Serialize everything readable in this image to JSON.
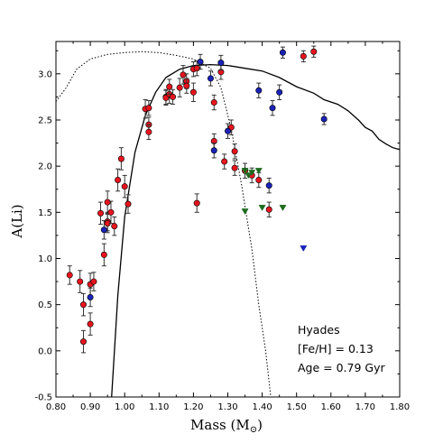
{
  "chart_data": {
    "type": "scatter",
    "xlabel": "Mass (M",
    "xlabel_sub": "⊙",
    "xlabel_end": ")",
    "ylabel": "A(Li)",
    "xlim": [
      0.8,
      1.8
    ],
    "ylim": [
      -0.5,
      3.35
    ],
    "xticks": [
      "0.80",
      "0.90",
      "1.00",
      "1.10",
      "1.20",
      "1.30",
      "1.40",
      "1.50",
      "1.60",
      "1.70",
      "1.80"
    ],
    "xtick_values": [
      0.8,
      0.9,
      1.0,
      1.1,
      1.2,
      1.3,
      1.4,
      1.5,
      1.6,
      1.7,
      1.8
    ],
    "yticks": [
      "-0.5",
      "0.0",
      "0.5",
      "1.0",
      "1.5",
      "2.0",
      "2.5",
      "3.0"
    ],
    "ytick_values": [
      -0.5,
      0.0,
      0.5,
      1.0,
      1.5,
      2.0,
      2.5,
      3.0
    ],
    "annotations": [
      "Hyades",
      "[Fe/H] = 0.13",
      "Age = 0.79 Gyr"
    ],
    "colors": {
      "red": "#e8141e",
      "blue": "#1a22b8",
      "green": "#1e6b1e"
    },
    "series": [
      {
        "marker": "circle",
        "color": "red",
        "points": [
          [
            0.84,
            0.82,
            0.1
          ],
          [
            0.87,
            0.75,
            0.12
          ],
          [
            0.88,
            0.5,
            0.12
          ],
          [
            0.88,
            0.1,
            0.12
          ],
          [
            0.9,
            0.72,
            0.12
          ],
          [
            0.9,
            0.29,
            0.12
          ],
          [
            0.91,
            0.75,
            0.1
          ],
          [
            0.93,
            1.49,
            0.12
          ],
          [
            0.94,
            1.04,
            0.12
          ],
          [
            0.95,
            1.4,
            0.1
          ],
          [
            0.95,
            1.61,
            0.12
          ],
          [
            0.95,
            1.38,
            0.1
          ],
          [
            0.96,
            1.5,
            0.12
          ],
          [
            0.97,
            1.35,
            0.1
          ],
          [
            0.98,
            1.85,
            0.12
          ],
          [
            0.99,
            2.08,
            0.12
          ],
          [
            1.0,
            1.78,
            0.12
          ],
          [
            1.01,
            1.59,
            0.1
          ],
          [
            1.06,
            2.62,
            0.1
          ],
          [
            1.07,
            2.63,
            0.08
          ],
          [
            1.07,
            2.45,
            0.08
          ],
          [
            1.07,
            2.37,
            0.08
          ],
          [
            1.12,
            2.75,
            0.08
          ],
          [
            1.12,
            2.74,
            0.08
          ],
          [
            1.13,
            2.78,
            0.1
          ],
          [
            1.13,
            2.86,
            0.08
          ],
          [
            1.14,
            2.75,
            0.08
          ],
          [
            1.16,
            2.85,
            0.1
          ],
          [
            1.17,
            2.99,
            0.1
          ],
          [
            1.18,
            2.92,
            0.08
          ],
          [
            1.18,
            2.87,
            0.08
          ],
          [
            1.2,
            2.8,
            0.1
          ],
          [
            1.2,
            3.05,
            0.08
          ],
          [
            1.21,
            3.06,
            0.08
          ],
          [
            1.21,
            1.6,
            0.1
          ],
          [
            1.26,
            2.69,
            0.08
          ],
          [
            1.26,
            2.27,
            0.08
          ],
          [
            1.28,
            3.02,
            0.08
          ],
          [
            1.29,
            2.05,
            0.08
          ],
          [
            1.31,
            2.42,
            0.08
          ],
          [
            1.32,
            2.16,
            0.08
          ],
          [
            1.32,
            1.98,
            0.08
          ],
          [
            1.35,
            1.95,
            0.08
          ],
          [
            1.37,
            1.9,
            0.08
          ],
          [
            1.39,
            1.85,
            0.08
          ],
          [
            1.42,
            1.53,
            0.08
          ],
          [
            1.52,
            3.19,
            0.06
          ],
          [
            1.55,
            3.24,
            0.06
          ]
        ]
      },
      {
        "marker": "circle",
        "color": "blue",
        "points": [
          [
            0.94,
            1.31,
            0.1
          ],
          [
            0.9,
            0.58,
            0.1
          ],
          [
            1.22,
            3.13,
            0.08
          ],
          [
            1.25,
            2.95,
            0.08
          ],
          [
            1.26,
            2.17,
            0.08
          ],
          [
            1.28,
            3.12,
            0.08
          ],
          [
            1.3,
            2.38,
            0.08
          ],
          [
            1.39,
            2.82,
            0.08
          ],
          [
            1.42,
            1.79,
            0.08
          ],
          [
            1.43,
            2.63,
            0.08
          ],
          [
            1.45,
            2.8,
            0.08
          ],
          [
            1.46,
            3.23,
            0.06
          ],
          [
            1.58,
            2.51,
            0.06
          ]
        ]
      },
      {
        "marker": "triangle-down",
        "color": "green",
        "points": [
          [
            1.35,
            1.95
          ],
          [
            1.36,
            1.9
          ],
          [
            1.37,
            1.93
          ],
          [
            1.39,
            1.95
          ],
          [
            1.35,
            1.51
          ],
          [
            1.4,
            1.55
          ],
          [
            1.46,
            1.55
          ]
        ]
      },
      {
        "marker": "triangle-down",
        "color": "blue",
        "points": [
          [
            1.52,
            1.11
          ]
        ]
      }
    ],
    "curves": [
      {
        "style": "solid",
        "points": [
          [
            0.962,
            -0.5
          ],
          [
            0.98,
            0.6
          ],
          [
            1.0,
            1.45
          ],
          [
            1.03,
            2.15
          ],
          [
            1.06,
            2.55
          ],
          [
            1.09,
            2.8
          ],
          [
            1.12,
            2.96
          ],
          [
            1.16,
            3.05
          ],
          [
            1.2,
            3.09
          ],
          [
            1.25,
            3.1
          ],
          [
            1.3,
            3.09
          ],
          [
            1.35,
            3.06
          ],
          [
            1.4,
            3.03
          ],
          [
            1.45,
            2.96
          ],
          [
            1.5,
            2.86
          ],
          [
            1.55,
            2.79
          ],
          [
            1.58,
            2.72
          ],
          [
            1.62,
            2.67
          ],
          [
            1.65,
            2.6
          ],
          [
            1.68,
            2.5
          ],
          [
            1.7,
            2.42
          ],
          [
            1.72,
            2.38
          ],
          [
            1.74,
            2.29
          ],
          [
            1.76,
            2.24
          ],
          [
            1.78,
            2.2
          ],
          [
            1.8,
            2.18
          ]
        ]
      },
      {
        "style": "dotted",
        "points": [
          [
            0.8,
            2.7
          ],
          [
            0.83,
            2.85
          ],
          [
            0.86,
            3.05
          ],
          [
            0.9,
            3.16
          ],
          [
            0.95,
            3.21
          ],
          [
            1.0,
            3.23
          ],
          [
            1.05,
            3.24
          ],
          [
            1.1,
            3.23
          ],
          [
            1.15,
            3.2
          ],
          [
            1.2,
            3.16
          ],
          [
            1.25,
            3.06
          ],
          [
            1.28,
            2.85
          ],
          [
            1.31,
            2.4
          ],
          [
            1.34,
            1.8
          ],
          [
            1.37,
            1.1
          ],
          [
            1.39,
            0.5
          ],
          [
            1.41,
            0.0
          ],
          [
            1.425,
            -0.5
          ]
        ]
      }
    ]
  }
}
